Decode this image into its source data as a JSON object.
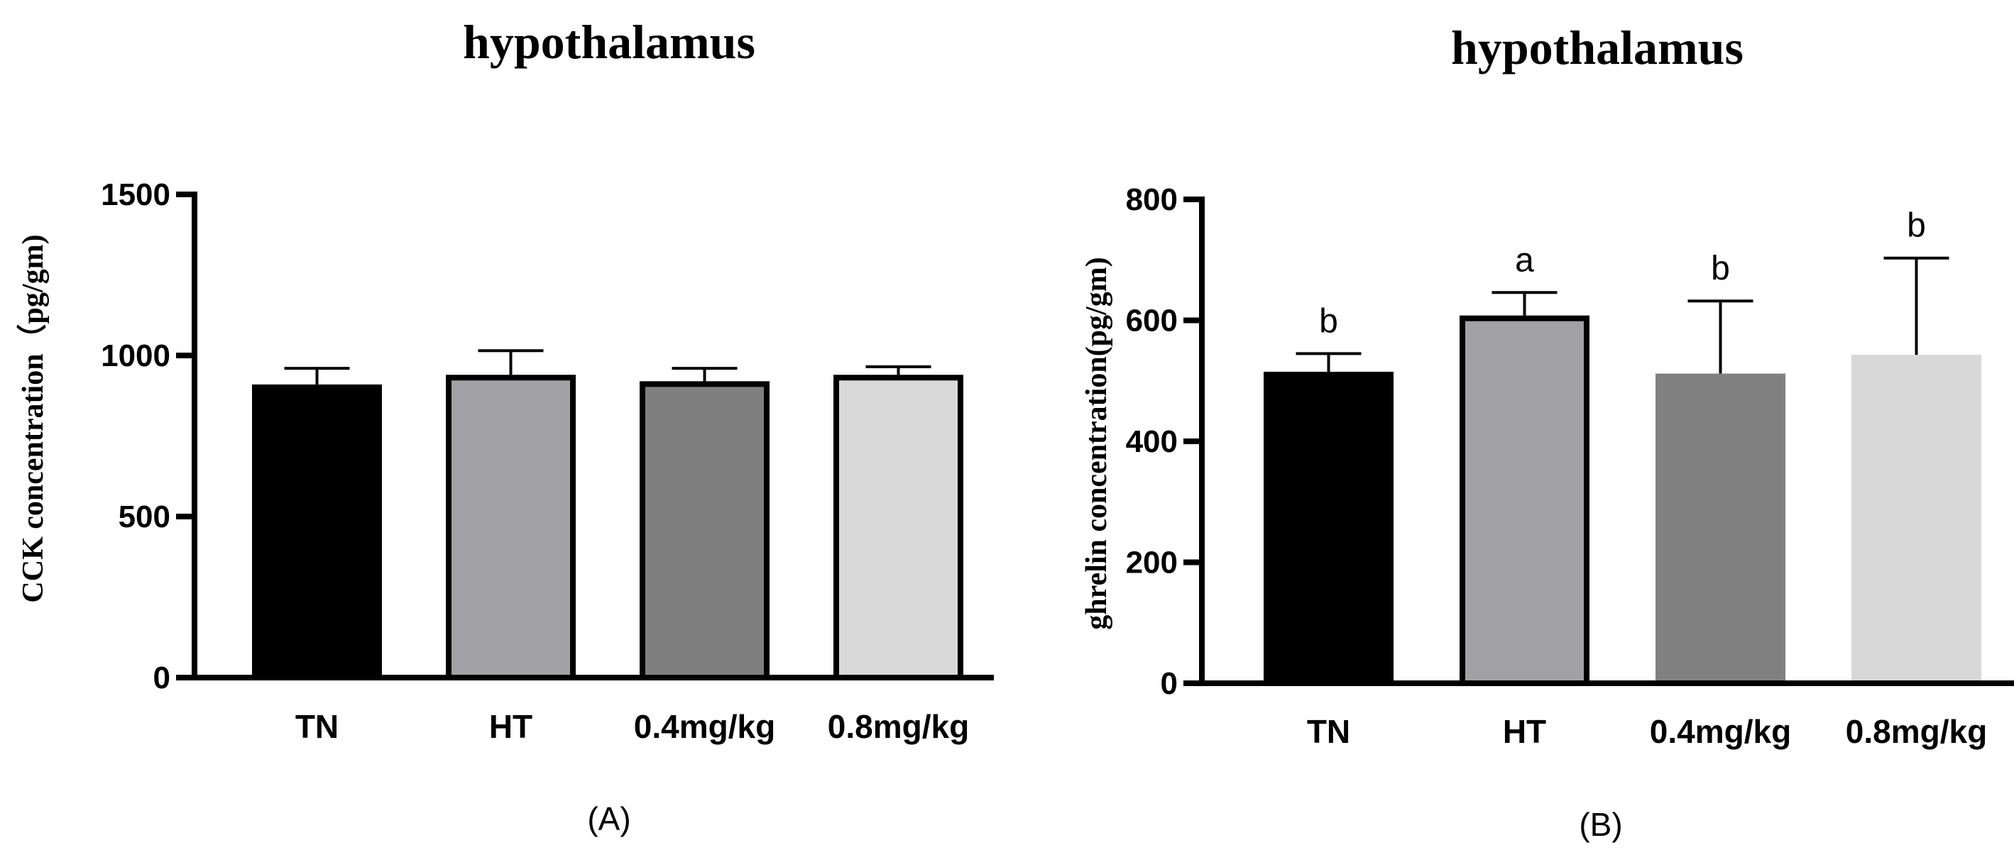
{
  "chart_data": [
    {
      "type": "bar",
      "title": "hypothalamus",
      "xlabel": "",
      "ylabel": "CCK concentration（pg/gm)",
      "ylim": [
        0,
        1500
      ],
      "yticks": [
        "0",
        "500",
        "1000",
        "1500"
      ],
      "ytick_values": [
        0,
        500,
        1000,
        1500
      ],
      "categories": [
        "TN",
        "HT",
        "0.4mg/kg",
        "0.8mg/kg"
      ],
      "values": [
        910,
        940,
        920,
        940
      ],
      "errors": [
        50,
        75,
        40,
        25
      ],
      "colors": [
        "#000000",
        "#a1a1a6",
        "#7f7f7f",
        "#d9d9d9"
      ],
      "outlined": [
        true,
        true,
        true,
        true
      ],
      "labels": [
        "",
        "",
        "",
        ""
      ],
      "panel_label": "(A)"
    },
    {
      "type": "bar",
      "title": "hypothalamus",
      "xlabel": "",
      "ylabel": "ghrelin concentration(pg/gm)",
      "ylim": [
        0,
        800
      ],
      "yticks": [
        "0",
        "200",
        "400",
        "600",
        "800"
      ],
      "ytick_values": [
        0,
        200,
        400,
        600,
        800
      ],
      "categories": [
        "TN",
        "HT",
        "0.4mg/kg",
        "0.8mg/kg"
      ],
      "values": [
        515,
        608,
        512,
        543
      ],
      "errors": [
        30,
        38,
        120,
        160
      ],
      "colors": [
        "#000000",
        "#a1a1a6",
        "#808080",
        "#d8d8d8"
      ],
      "outlined": [
        true,
        true,
        false,
        false
      ],
      "labels": [
        "b",
        "a",
        "b",
        "b"
      ],
      "panel_label": "(B)"
    }
  ]
}
